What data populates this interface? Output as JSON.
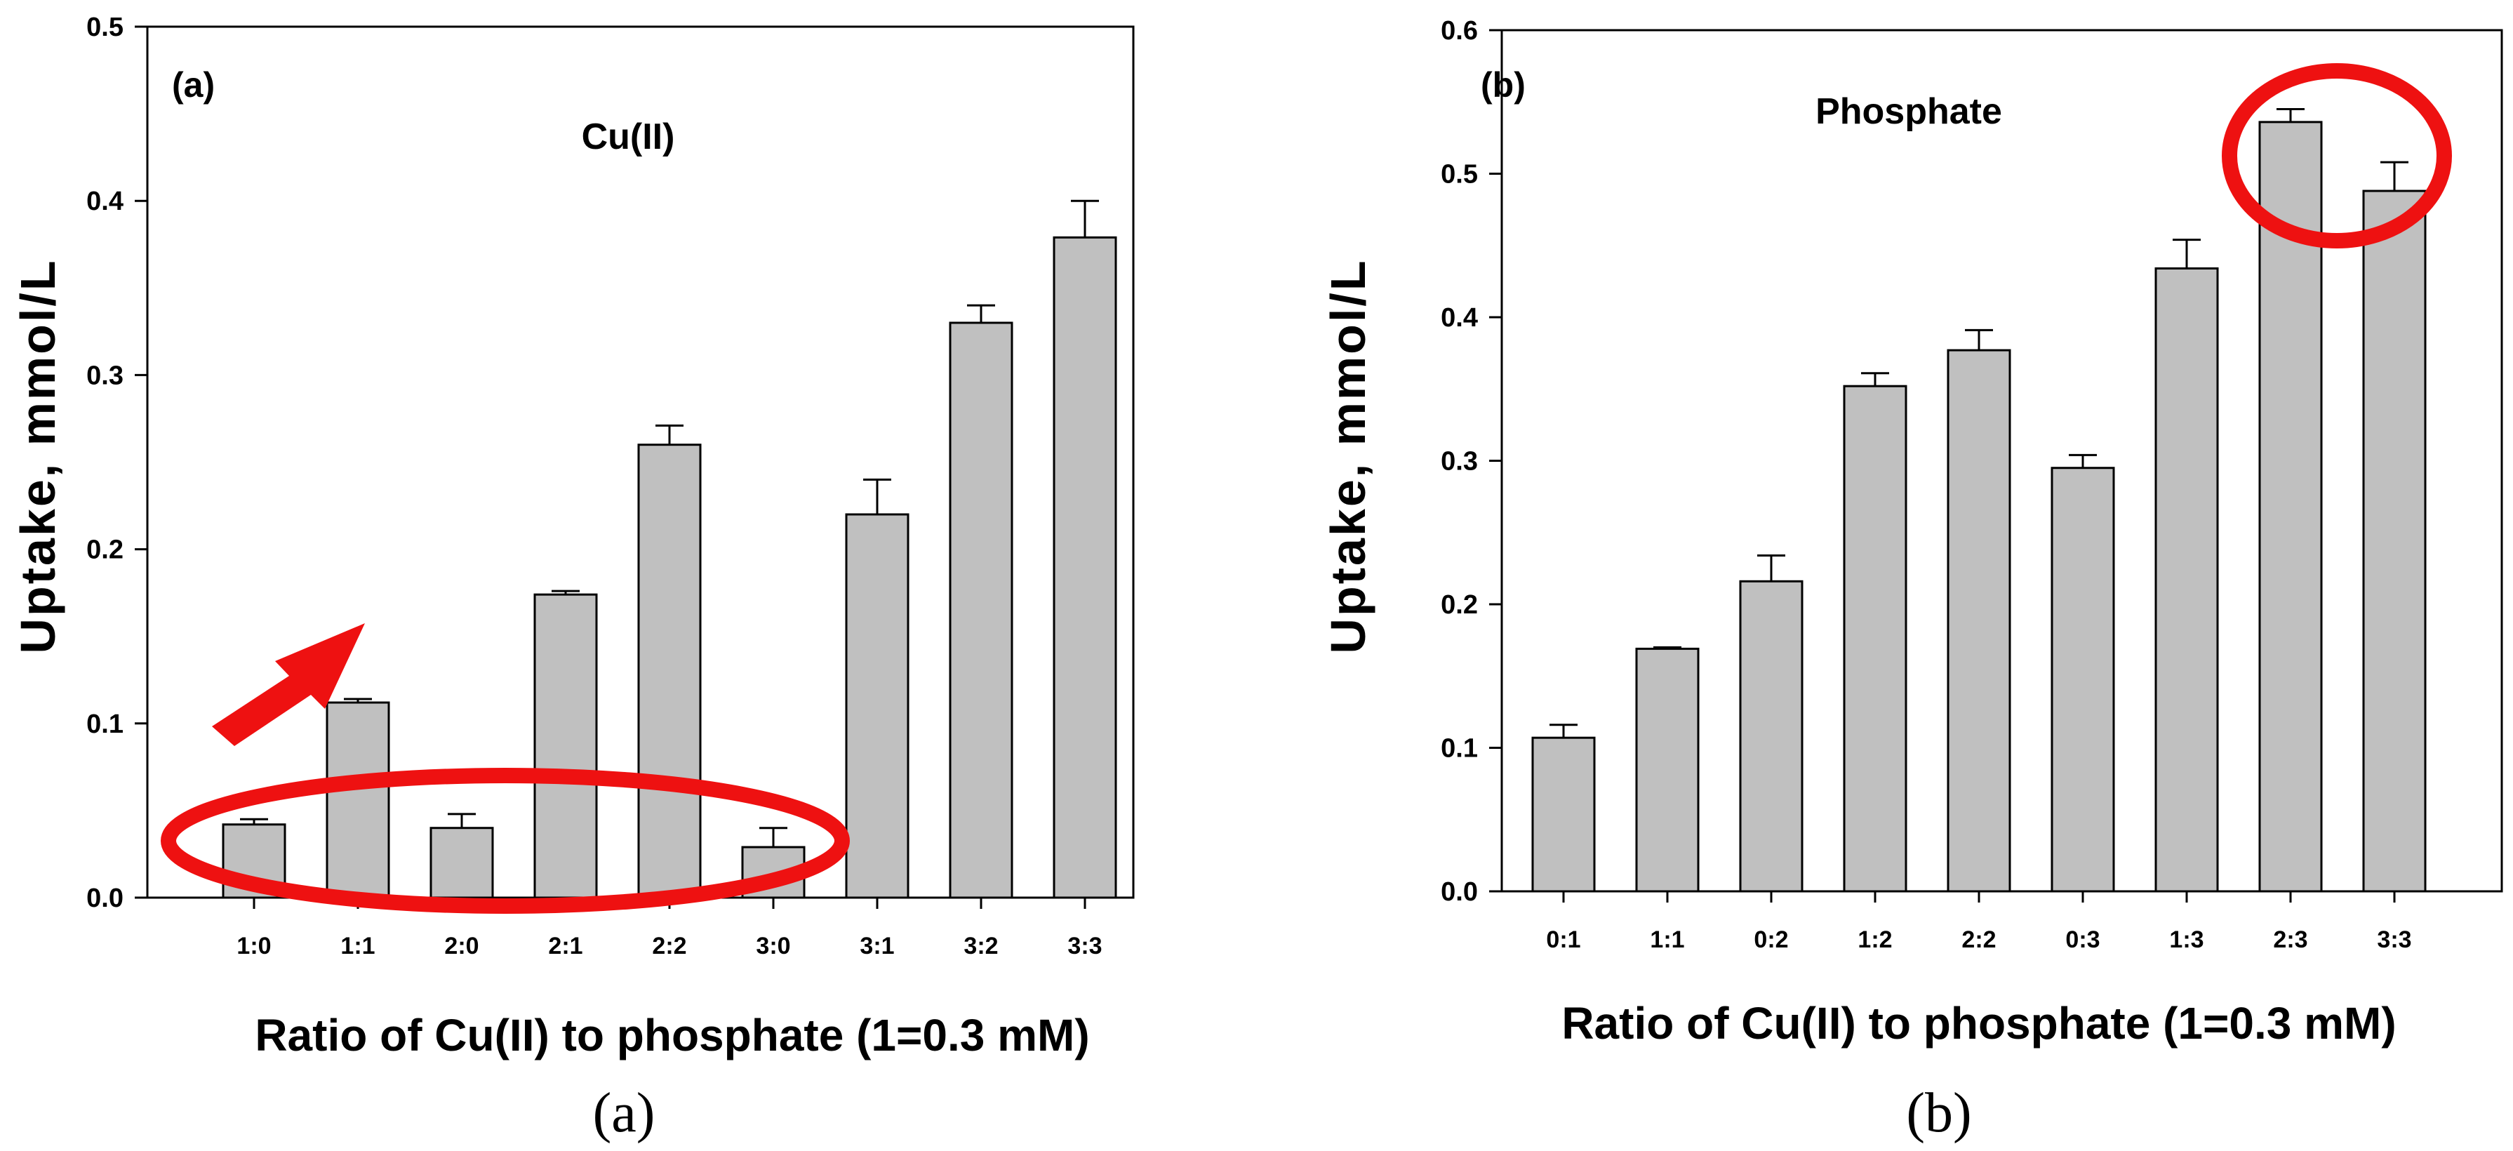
{
  "chart_data": [
    {
      "type": "bar",
      "panel_tag": "(a)",
      "caption": "(a)",
      "title": "Cu(II)",
      "xlabel": "Ratio of Cu(II) to phosphate (1=0.3 mM)",
      "ylabel": "Uptake, mmol/L",
      "ylim": [
        0,
        0.5
      ],
      "yticks": [
        "0.0",
        "0.1",
        "0.2",
        "0.3",
        "0.4",
        "0.5"
      ],
      "categories": [
        "1:0",
        "1:1",
        "2:0",
        "2:1",
        "2:2",
        "3:0",
        "3:1",
        "3:2",
        "3:3"
      ],
      "values": [
        0.042,
        0.112,
        0.04,
        0.174,
        0.26,
        0.029,
        0.22,
        0.33,
        0.379
      ],
      "errors": [
        0.003,
        0.002,
        0.008,
        0.002,
        0.011,
        0.011,
        0.02,
        0.01,
        0.021
      ],
      "grid": false,
      "bar_color": "#c0c0c0",
      "annotation_color": "#ee1111"
    },
    {
      "type": "bar",
      "panel_tag": "(b)",
      "caption": "(b)",
      "title": "Phosphate",
      "xlabel": "Ratio of Cu(II) to phosphate (1=0.3 mM)",
      "ylabel": "Uptake, mmol/L",
      "ylim": [
        0,
        0.6
      ],
      "yticks": [
        "0.0",
        "0.1",
        "0.2",
        "0.3",
        "0.4",
        "0.5",
        "0.6"
      ],
      "categories": [
        "0:1",
        "1:1",
        "0:2",
        "1:2",
        "2:2",
        "0:3",
        "1:3",
        "2:3",
        "3:3"
      ],
      "values": [
        0.107,
        0.169,
        0.216,
        0.352,
        0.377,
        0.295,
        0.434,
        0.536,
        0.488
      ],
      "errors": [
        0.009,
        0.001,
        0.018,
        0.009,
        0.014,
        0.009,
        0.02,
        0.009,
        0.02
      ],
      "grid": false,
      "bar_color": "#c0c0c0",
      "annotation_color": "#ee1111"
    }
  ]
}
